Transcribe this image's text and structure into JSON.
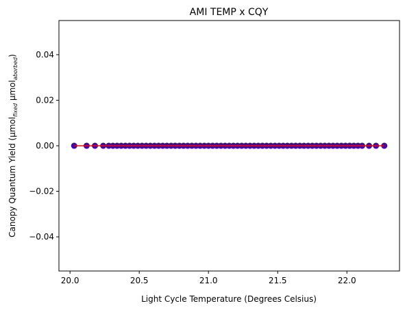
{
  "chart_data": {
    "type": "scatter",
    "title": "AMI TEMP x CQY",
    "xlabel": "Light Cycle Temperature (Degrees Celsius)",
    "ylabel": {
      "prefix": "Canopy Quantum Yield (μmol",
      "sub1": "fixed",
      "middle": " μmol",
      "sub2": "aborbed",
      "suffix": ")"
    },
    "xlim": [
      19.92,
      22.38
    ],
    "ylim": [
      -0.055,
      0.055
    ],
    "xticks": [
      20.0,
      20.5,
      21.0,
      21.5,
      22.0
    ],
    "xtick_labels": [
      "20.0",
      "20.5",
      "21.0",
      "21.5",
      "22.0"
    ],
    "yticks": [
      0.04,
      0.02,
      0.0,
      -0.02,
      -0.04
    ],
    "ytick_labels": [
      "0.04",
      "0.02",
      "0.00",
      "−0.02",
      "−0.04"
    ],
    "grid": false,
    "series": [
      {
        "marker_color": "#3f0b9e",
        "x": [
          20.03,
          20.12,
          20.18,
          20.24,
          20.28,
          20.31,
          20.34,
          20.37,
          20.4,
          20.43,
          20.46,
          20.49,
          20.52,
          20.55,
          20.58,
          20.61,
          20.64,
          20.67,
          20.7,
          20.73,
          20.76,
          20.79,
          20.82,
          20.85,
          20.88,
          20.91,
          20.94,
          20.97,
          21.0,
          21.03,
          21.06,
          21.09,
          21.12,
          21.15,
          21.18,
          21.21,
          21.24,
          21.27,
          21.3,
          21.33,
          21.36,
          21.39,
          21.42,
          21.45,
          21.48,
          21.51,
          21.54,
          21.57,
          21.6,
          21.63,
          21.66,
          21.69,
          21.72,
          21.75,
          21.78,
          21.81,
          21.84,
          21.87,
          21.9,
          21.93,
          21.96,
          21.99,
          22.02,
          22.05,
          22.08,
          22.11,
          22.16,
          22.21,
          22.27
        ],
        "y": [
          0,
          0,
          0,
          0,
          0,
          0,
          0,
          0,
          0,
          0,
          0,
          0,
          0,
          0,
          0,
          0,
          0,
          0,
          0,
          0,
          0,
          0,
          0,
          0,
          0,
          0,
          0,
          0,
          0,
          0,
          0,
          0,
          0,
          0,
          0,
          0,
          0,
          0,
          0,
          0,
          0,
          0,
          0,
          0,
          0,
          0,
          0,
          0,
          0,
          0,
          0,
          0,
          0,
          0,
          0,
          0,
          0,
          0,
          0,
          0,
          0,
          0,
          0,
          0,
          0,
          0,
          0,
          0,
          0
        ]
      },
      {
        "type": "line",
        "color": "#ff0000",
        "x": [
          20.03,
          22.27
        ],
        "y": [
          0,
          0
        ]
      }
    ]
  }
}
